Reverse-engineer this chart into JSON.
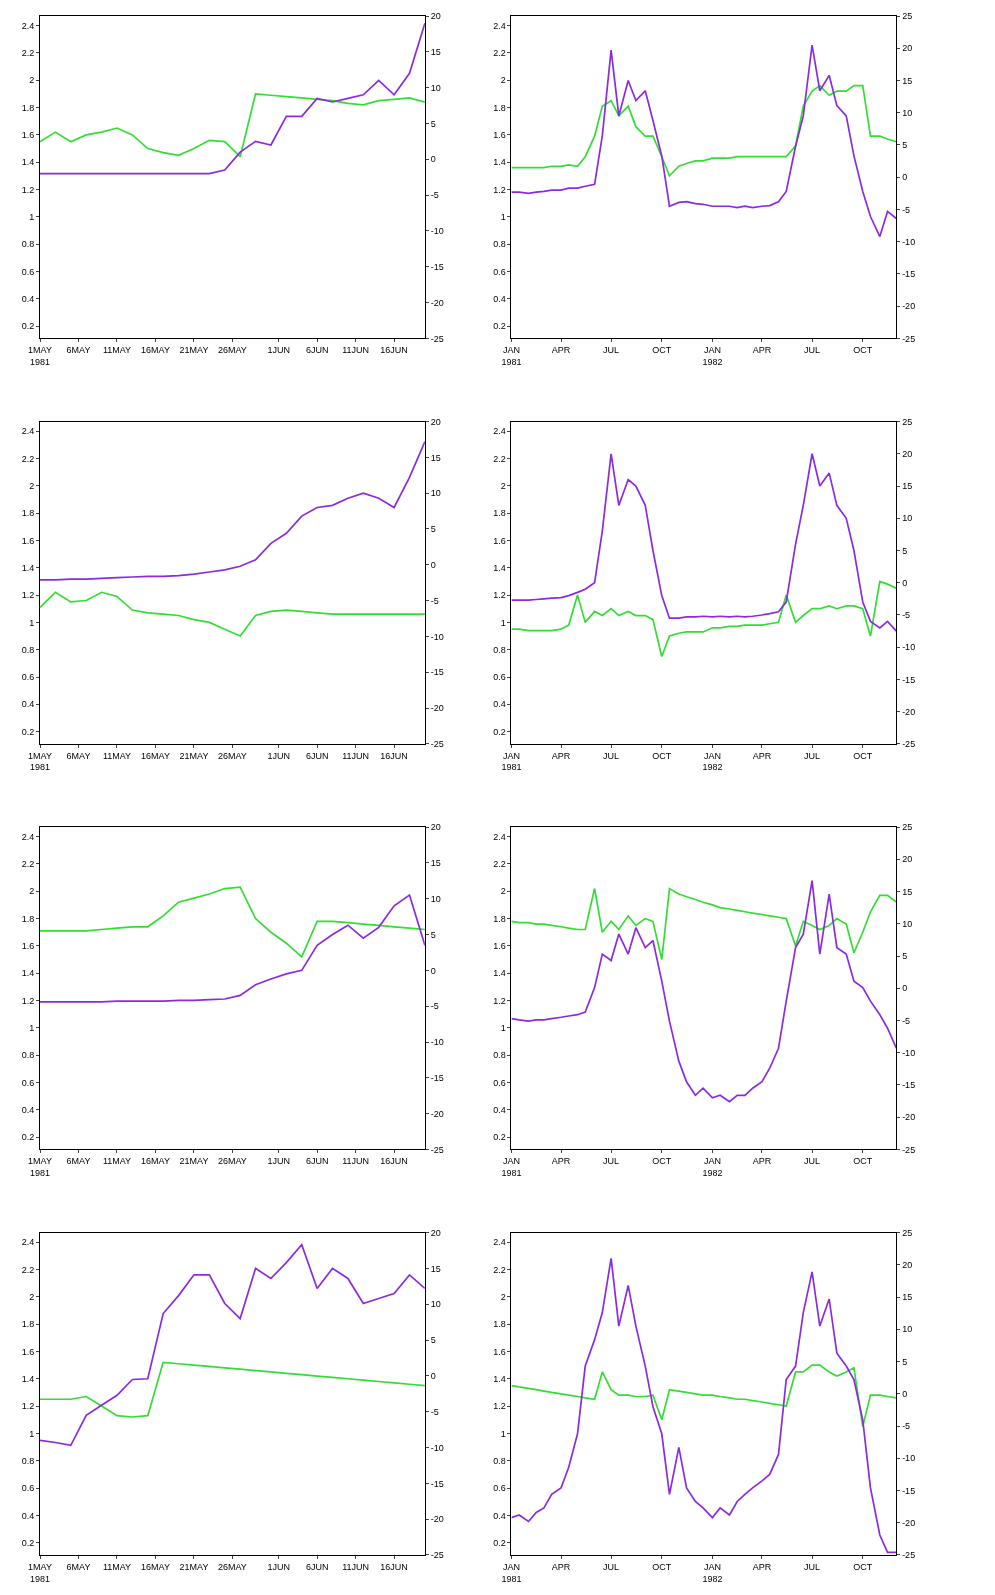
{
  "chart_data": [
    {
      "type": "line",
      "x": [
        "1981-05-01",
        "1981-05-03",
        "1981-05-05",
        "1981-05-07",
        "1981-05-09",
        "1981-05-11",
        "1981-05-13",
        "1981-05-15",
        "1981-05-17",
        "1981-05-19",
        "1981-05-21",
        "1981-05-23",
        "1981-05-25",
        "1981-05-27",
        "1981-05-29",
        "1981-05-31",
        "1981-06-02",
        "1981-06-04",
        "1981-06-06",
        "1981-06-08",
        "1981-06-10",
        "1981-06-12",
        "1981-06-14",
        "1981-06-16",
        "1981-06-18",
        "1981-06-20"
      ],
      "xlim": [
        "1981-05-01",
        "1981-06-20"
      ],
      "xticks": [
        {
          "value": "1981-05-01",
          "label": "1MAY\n1981"
        },
        {
          "value": "1981-05-06",
          "label": "6MAY"
        },
        {
          "value": "1981-05-11",
          "label": "11MAY"
        },
        {
          "value": "1981-05-16",
          "label": "16MAY"
        },
        {
          "value": "1981-05-21",
          "label": "21MAY"
        },
        {
          "value": "1981-05-26",
          "label": "26MAY"
        },
        {
          "value": "1981-06-01",
          "label": "1JUN"
        },
        {
          "value": "1981-06-06",
          "label": "6JUN"
        },
        {
          "value": "1981-06-11",
          "label": "11JUN"
        },
        {
          "value": "1981-06-16",
          "label": "16JUN"
        }
      ],
      "ylim": [
        0.11,
        2.47
      ],
      "yticks": [
        0.2,
        0.4,
        0.6,
        0.8,
        1,
        1.2,
        1.4,
        1.6,
        1.8,
        2,
        2.2,
        2.4
      ],
      "y2lim": [
        -25,
        20
      ],
      "y2ticks": [
        -25,
        -20,
        -15,
        -10,
        -5,
        0,
        5,
        10,
        15,
        20
      ],
      "series": [
        {
          "color": "#33dd33",
          "values": [
            1.55,
            1.62,
            1.55,
            1.6,
            1.62,
            1.65,
            1.6,
            1.5,
            1.47,
            1.45,
            1.5,
            1.56,
            1.55,
            1.44,
            1.9,
            1.89,
            1.88,
            1.87,
            1.86,
            1.85,
            1.83,
            1.82,
            1.85,
            1.86,
            1.87,
            1.84
          ]
        },
        {
          "color": "#8a2be2",
          "axis": "y2",
          "values": [
            -2,
            -2,
            -2,
            -2,
            -2,
            -2,
            -2,
            -2,
            -2,
            -2,
            -2,
            -2,
            -1.5,
            1,
            2.5,
            2,
            6,
            6,
            8.5,
            8,
            8.5,
            9,
            11,
            9,
            12,
            19
          ]
        }
      ]
    },
    {
      "type": "line",
      "x": [
        "1981-01-01",
        "1981-01-15",
        "1981-02-01",
        "1981-02-15",
        "1981-03-01",
        "1981-03-15",
        "1981-04-01",
        "1981-04-15",
        "1981-05-01",
        "1981-05-15",
        "1981-06-01",
        "1981-06-15",
        "1981-07-01",
        "1981-07-15",
        "1981-08-01",
        "1981-08-15",
        "1981-09-01",
        "1981-09-15",
        "1981-10-01",
        "1981-10-15",
        "1981-11-01",
        "1981-11-15",
        "1981-12-01",
        "1981-12-15",
        "1982-01-01",
        "1982-01-15",
        "1982-02-01",
        "1982-02-15",
        "1982-03-01",
        "1982-03-15",
        "1982-04-01",
        "1982-04-15",
        "1982-05-01",
        "1982-05-15",
        "1982-06-01",
        "1982-06-15",
        "1982-07-01",
        "1982-07-15",
        "1982-08-01",
        "1982-08-15",
        "1982-09-01",
        "1982-09-15",
        "1982-10-01",
        "1982-10-15",
        "1982-11-01",
        "1982-11-15",
        "1982-12-01"
      ],
      "xlim": [
        "1981-01-01",
        "1982-12-01"
      ],
      "xticks": [
        {
          "value": "1981-01-01",
          "label": "JAN\n1981"
        },
        {
          "value": "1981-04-01",
          "label": "APR"
        },
        {
          "value": "1981-07-01",
          "label": "JUL"
        },
        {
          "value": "1981-10-01",
          "label": "OCT"
        },
        {
          "value": "1982-01-01",
          "label": "JAN\n1982"
        },
        {
          "value": "1982-04-01",
          "label": "APR"
        },
        {
          "value": "1982-07-01",
          "label": "JUL"
        },
        {
          "value": "1982-10-01",
          "label": "OCT"
        }
      ],
      "ylim": [
        0.11,
        2.47
      ],
      "yticks": [
        0.2,
        0.4,
        0.6,
        0.8,
        1,
        1.2,
        1.4,
        1.6,
        1.8,
        2,
        2.2,
        2.4
      ],
      "y2lim": [
        -25,
        25
      ],
      "y2ticks": [
        -25,
        -20,
        -15,
        -10,
        -5,
        0,
        5,
        10,
        15,
        20,
        25
      ],
      "series": [
        {
          "color": "#33dd33",
          "values": [
            1.36,
            1.36,
            1.36,
            1.36,
            1.36,
            1.37,
            1.37,
            1.38,
            1.37,
            1.44,
            1.59,
            1.81,
            1.85,
            1.74,
            1.81,
            1.66,
            1.59,
            1.59,
            1.44,
            1.3,
            1.37,
            1.39,
            1.41,
            1.41,
            1.43,
            1.43,
            1.43,
            1.44,
            1.44,
            1.44,
            1.44,
            1.44,
            1.44,
            1.44,
            1.52,
            1.81,
            1.92,
            1.96,
            1.89,
            1.92,
            1.92,
            1.96,
            1.96,
            1.59,
            1.59,
            1.57,
            1.55
          ]
        },
        {
          "color": "#8a2be2",
          "axis": "y2",
          "values": [
            -2.3,
            -2.3,
            -2.5,
            -2.3,
            -2.2,
            -2.0,
            -2.0,
            -1.7,
            -1.7,
            -1.4,
            -1.1,
            6.4,
            19.7,
            9.5,
            15.0,
            11.9,
            13.4,
            8.8,
            3.3,
            -4.5,
            -3.9,
            -3.8,
            -4.1,
            -4.2,
            -4.5,
            -4.5,
            -4.5,
            -4.7,
            -4.5,
            -4.7,
            -4.5,
            -4.4,
            -3.8,
            -2.2,
            4.8,
            9.5,
            20.5,
            13.4,
            15.8,
            11.1,
            9.5,
            3.3,
            -2.2,
            -6.1,
            -9.2,
            -5.3,
            -6.4
          ]
        }
      ]
    },
    {
      "type": "line",
      "x": [
        "1981-05-01",
        "1981-05-03",
        "1981-05-05",
        "1981-05-07",
        "1981-05-09",
        "1981-05-11",
        "1981-05-13",
        "1981-05-15",
        "1981-05-17",
        "1981-05-19",
        "1981-05-21",
        "1981-05-23",
        "1981-05-25",
        "1981-05-27",
        "1981-05-29",
        "1981-05-31",
        "1981-06-02",
        "1981-06-04",
        "1981-06-06",
        "1981-06-08",
        "1981-06-10",
        "1981-06-12",
        "1981-06-14",
        "1981-06-16",
        "1981-06-18",
        "1981-06-20"
      ],
      "xlim": [
        "1981-05-01",
        "1981-06-20"
      ],
      "xticks": [
        {
          "value": "1981-05-01",
          "label": "1MAY\n1981"
        },
        {
          "value": "1981-05-06",
          "label": "6MAY"
        },
        {
          "value": "1981-05-11",
          "label": "11MAY"
        },
        {
          "value": "1981-05-16",
          "label": "16MAY"
        },
        {
          "value": "1981-05-21",
          "label": "21MAY"
        },
        {
          "value": "1981-05-26",
          "label": "26MAY"
        },
        {
          "value": "1981-06-01",
          "label": "1JUN"
        },
        {
          "value": "1981-06-06",
          "label": "6JUN"
        },
        {
          "value": "1981-06-11",
          "label": "11JUN"
        },
        {
          "value": "1981-06-16",
          "label": "16JUN"
        }
      ],
      "ylim": [
        0.11,
        2.47
      ],
      "yticks": [
        0.2,
        0.4,
        0.6,
        0.8,
        1,
        1.2,
        1.4,
        1.6,
        1.8,
        2,
        2.2,
        2.4
      ],
      "y2lim": [
        -25,
        20
      ],
      "y2ticks": [
        -25,
        -20,
        -15,
        -10,
        -5,
        0,
        5,
        10,
        15,
        20
      ],
      "series": [
        {
          "color": "#33dd33",
          "values": [
            1.11,
            1.22,
            1.15,
            1.16,
            1.22,
            1.19,
            1.09,
            1.07,
            1.06,
            1.05,
            1.02,
            1.0,
            0.95,
            0.9,
            1.05,
            1.08,
            1.09,
            1.08,
            1.07,
            1.06,
            1.06,
            1.06,
            1.06,
            1.06,
            1.06,
            1.06
          ]
        },
        {
          "color": "#8a2be2",
          "axis": "y2",
          "values": [
            -2.1,
            -2.1,
            -2.0,
            -2.0,
            -1.9,
            -1.8,
            -1.7,
            -1.6,
            -1.6,
            -1.5,
            -1.3,
            -1.0,
            -0.7,
            -0.2,
            0.7,
            3,
            4.4,
            6.8,
            8,
            8.3,
            9.3,
            10,
            9.3,
            8,
            12.2,
            17.2
          ]
        }
      ]
    },
    {
      "type": "line",
      "x": [
        "1981-01-01",
        "1981-01-15",
        "1981-02-01",
        "1981-02-15",
        "1981-03-01",
        "1981-03-15",
        "1981-04-01",
        "1981-04-15",
        "1981-05-01",
        "1981-05-15",
        "1981-06-01",
        "1981-06-15",
        "1981-07-01",
        "1981-07-15",
        "1981-08-01",
        "1981-08-15",
        "1981-09-01",
        "1981-09-15",
        "1981-10-01",
        "1981-10-15",
        "1981-11-01",
        "1981-11-15",
        "1981-12-01",
        "1981-12-15",
        "1982-01-01",
        "1982-01-15",
        "1982-02-01",
        "1982-02-15",
        "1982-03-01",
        "1982-03-15",
        "1982-04-01",
        "1982-04-15",
        "1982-05-01",
        "1982-05-15",
        "1982-06-01",
        "1982-06-15",
        "1982-07-01",
        "1982-07-15",
        "1982-08-01",
        "1982-08-15",
        "1982-09-01",
        "1982-09-15",
        "1982-10-01",
        "1982-10-15",
        "1982-11-01",
        "1982-11-15",
        "1982-12-01"
      ],
      "xlim": [
        "1981-01-01",
        "1982-12-01"
      ],
      "xticks": [
        {
          "value": "1981-01-01",
          "label": "JAN\n1981"
        },
        {
          "value": "1981-04-01",
          "label": "APR"
        },
        {
          "value": "1981-07-01",
          "label": "JUL"
        },
        {
          "value": "1981-10-01",
          "label": "OCT"
        },
        {
          "value": "1982-01-01",
          "label": "JAN\n1982"
        },
        {
          "value": "1982-04-01",
          "label": "APR"
        },
        {
          "value": "1982-07-01",
          "label": "JUL"
        },
        {
          "value": "1982-10-01",
          "label": "OCT"
        }
      ],
      "ylim": [
        0.11,
        2.47
      ],
      "yticks": [
        0.2,
        0.4,
        0.6,
        0.8,
        1,
        1.2,
        1.4,
        1.6,
        1.8,
        2,
        2.2,
        2.4
      ],
      "y2lim": [
        -25,
        25
      ],
      "y2ticks": [
        -25,
        -20,
        -15,
        -10,
        -5,
        0,
        5,
        10,
        15,
        20,
        25
      ],
      "series": [
        {
          "color": "#33dd33",
          "values": [
            0.95,
            0.95,
            0.94,
            0.94,
            0.94,
            0.94,
            0.95,
            0.98,
            1.2,
            1.0,
            1.08,
            1.05,
            1.1,
            1.05,
            1.08,
            1.05,
            1.05,
            1.02,
            0.75,
            0.9,
            0.92,
            0.93,
            0.93,
            0.93,
            0.96,
            0.96,
            0.97,
            0.97,
            0.98,
            0.98,
            0.98,
            0.99,
            1.0,
            1.2,
            1.0,
            1.05,
            1.1,
            1.1,
            1.12,
            1.1,
            1.12,
            1.12,
            1.1,
            0.9,
            1.3,
            1.28,
            1.25
          ]
        },
        {
          "color": "#8a2be2",
          "axis": "y2",
          "values": [
            -2.7,
            -2.7,
            -2.7,
            -2.6,
            -2.5,
            -2.4,
            -2.3,
            -2.0,
            -1.5,
            -1.0,
            0,
            8,
            20,
            12,
            16,
            15,
            12,
            5,
            -2,
            -5.5,
            -5.5,
            -5.3,
            -5.3,
            -5.2,
            -5.3,
            -5.2,
            -5.3,
            -5.2,
            -5.3,
            -5.2,
            -5.0,
            -4.8,
            -4.5,
            -3,
            6,
            12,
            20,
            15,
            17,
            12,
            10,
            5,
            -3,
            -6,
            -7,
            -6,
            -7.5
          ]
        }
      ]
    },
    {
      "type": "line",
      "x": [
        "1981-05-01",
        "1981-05-03",
        "1981-05-05",
        "1981-05-07",
        "1981-05-09",
        "1981-05-11",
        "1981-05-13",
        "1981-05-15",
        "1981-05-17",
        "1981-05-19",
        "1981-05-21",
        "1981-05-23",
        "1981-05-25",
        "1981-05-27",
        "1981-05-29",
        "1981-05-31",
        "1981-06-02",
        "1981-06-04",
        "1981-06-06",
        "1981-06-08",
        "1981-06-10",
        "1981-06-12",
        "1981-06-14",
        "1981-06-16",
        "1981-06-18",
        "1981-06-20"
      ],
      "xlim": [
        "1981-05-01",
        "1981-06-20"
      ],
      "xticks": [
        {
          "value": "1981-05-01",
          "label": "1MAY\n1981"
        },
        {
          "value": "1981-05-06",
          "label": "6MAY"
        },
        {
          "value": "1981-05-11",
          "label": "11MAY"
        },
        {
          "value": "1981-05-16",
          "label": "16MAY"
        },
        {
          "value": "1981-05-21",
          "label": "21MAY"
        },
        {
          "value": "1981-05-26",
          "label": "26MAY"
        },
        {
          "value": "1981-06-01",
          "label": "1JUN"
        },
        {
          "value": "1981-06-06",
          "label": "6JUN"
        },
        {
          "value": "1981-06-11",
          "label": "11JUN"
        },
        {
          "value": "1981-06-16",
          "label": "16JUN"
        }
      ],
      "ylim": [
        0.11,
        2.47
      ],
      "yticks": [
        0.2,
        0.4,
        0.6,
        0.8,
        1,
        1.2,
        1.4,
        1.6,
        1.8,
        2,
        2.2,
        2.4
      ],
      "y2lim": [
        -25,
        20
      ],
      "y2ticks": [
        -25,
        -20,
        -15,
        -10,
        -5,
        0,
        5,
        10,
        15,
        20
      ],
      "series": [
        {
          "color": "#33dd33",
          "values": [
            1.71,
            1.71,
            1.71,
            1.71,
            1.72,
            1.73,
            1.74,
            1.74,
            1.82,
            1.92,
            1.95,
            1.98,
            2.02,
            2.03,
            1.8,
            1.7,
            1.62,
            1.52,
            1.78,
            1.78,
            1.77,
            1.76,
            1.75,
            1.74,
            1.73,
            1.72
          ]
        },
        {
          "color": "#8a2be2",
          "axis": "y2",
          "values": [
            -4.4,
            -4.4,
            -4.4,
            -4.4,
            -4.4,
            -4.3,
            -4.3,
            -4.3,
            -4.3,
            -4.2,
            -4.2,
            -4.1,
            -4.0,
            -3.5,
            -2,
            -1.2,
            -0.5,
            0,
            3.5,
            5,
            6.3,
            4.5,
            6,
            9,
            10.5,
            3.5
          ]
        }
      ]
    },
    {
      "type": "line",
      "x": [
        "1981-01-01",
        "1981-01-15",
        "1981-02-01",
        "1981-02-15",
        "1981-03-01",
        "1981-03-15",
        "1981-04-01",
        "1981-04-15",
        "1981-05-01",
        "1981-05-15",
        "1981-06-01",
        "1981-06-15",
        "1981-07-01",
        "1981-07-15",
        "1981-08-01",
        "1981-08-15",
        "1981-09-01",
        "1981-09-15",
        "1981-10-01",
        "1981-10-15",
        "1981-11-01",
        "1981-11-15",
        "1981-12-01",
        "1981-12-15",
        "1982-01-01",
        "1982-01-15",
        "1982-02-01",
        "1982-02-15",
        "1982-03-01",
        "1982-03-15",
        "1982-04-01",
        "1982-04-15",
        "1982-05-01",
        "1982-05-15",
        "1982-06-01",
        "1982-06-15",
        "1982-07-01",
        "1982-07-15",
        "1982-08-01",
        "1982-08-15",
        "1982-09-01",
        "1982-09-15",
        "1982-10-01",
        "1982-10-15",
        "1982-11-01",
        "1982-11-15",
        "1982-12-01"
      ],
      "xlim": [
        "1981-01-01",
        "1982-12-01"
      ],
      "xticks": [
        {
          "value": "1981-01-01",
          "label": "JAN\n1981"
        },
        {
          "value": "1981-04-01",
          "label": "APR"
        },
        {
          "value": "1981-07-01",
          "label": "JUL"
        },
        {
          "value": "1981-10-01",
          "label": "OCT"
        },
        {
          "value": "1982-01-01",
          "label": "JAN\n1982"
        },
        {
          "value": "1982-04-01",
          "label": "APR"
        },
        {
          "value": "1982-07-01",
          "label": "JUL"
        },
        {
          "value": "1982-10-01",
          "label": "OCT"
        }
      ],
      "ylim": [
        0.11,
        2.47
      ],
      "yticks": [
        0.2,
        0.4,
        0.6,
        0.8,
        1,
        1.2,
        1.4,
        1.6,
        1.8,
        2,
        2.2,
        2.4
      ],
      "y2lim": [
        -25,
        25
      ],
      "y2ticks": [
        -25,
        -20,
        -15,
        -10,
        -5,
        0,
        5,
        10,
        15,
        20,
        25
      ],
      "series": [
        {
          "color": "#33dd33",
          "values": [
            1.78,
            1.77,
            1.77,
            1.76,
            1.76,
            1.75,
            1.74,
            1.73,
            1.72,
            1.72,
            2.02,
            1.7,
            1.78,
            1.72,
            1.82,
            1.75,
            1.8,
            1.78,
            1.5,
            2.02,
            1.98,
            1.96,
            1.94,
            1.92,
            1.9,
            1.88,
            1.87,
            1.86,
            1.85,
            1.84,
            1.83,
            1.82,
            1.81,
            1.8,
            1.6,
            1.78,
            1.75,
            1.72,
            1.75,
            1.8,
            1.76,
            1.55,
            1.7,
            1.85,
            1.97,
            1.97,
            1.92
          ]
        },
        {
          "color": "#8a2be2",
          "axis": "y2",
          "values": [
            -4.7,
            -4.9,
            -5.1,
            -4.9,
            -4.9,
            -4.7,
            -4.5,
            -4.3,
            -4.1,
            -3.7,
            0.1,
            5.3,
            4.3,
            8.4,
            5.3,
            9.4,
            6.3,
            7.4,
            1.1,
            -5.1,
            -11.3,
            -14.5,
            -16.6,
            -15.5,
            -17.0,
            -16.6,
            -17.6,
            -16.6,
            -16.6,
            -15.5,
            -14.5,
            -12.4,
            -9.3,
            -2.0,
            6.3,
            8.4,
            16.7,
            5.3,
            14.6,
            6.3,
            5.3,
            1.1,
            0.1,
            -2.0,
            -4.1,
            -6.2,
            -9.3
          ]
        }
      ]
    },
    {
      "type": "line",
      "x": [
        "1981-05-01",
        "1981-05-03",
        "1981-05-05",
        "1981-05-07",
        "1981-05-09",
        "1981-05-11",
        "1981-05-13",
        "1981-05-15",
        "1981-05-17",
        "1981-05-19",
        "1981-05-21",
        "1981-05-23",
        "1981-05-25",
        "1981-05-27",
        "1981-05-29",
        "1981-05-31",
        "1981-06-02",
        "1981-06-04",
        "1981-06-06",
        "1981-06-08",
        "1981-06-10",
        "1981-06-12",
        "1981-06-14",
        "1981-06-16",
        "1981-06-18",
        "1981-06-20"
      ],
      "xlim": [
        "1981-05-01",
        "1981-06-20"
      ],
      "xticks": [
        {
          "value": "1981-05-01",
          "label": "1MAY\n1981"
        },
        {
          "value": "1981-05-06",
          "label": "6MAY"
        },
        {
          "value": "1981-05-11",
          "label": "11MAY"
        },
        {
          "value": "1981-05-16",
          "label": "16MAY"
        },
        {
          "value": "1981-05-21",
          "label": "21MAY"
        },
        {
          "value": "1981-05-26",
          "label": "26MAY"
        },
        {
          "value": "1981-06-01",
          "label": "1JUN"
        },
        {
          "value": "1981-06-06",
          "label": "6JUN"
        },
        {
          "value": "1981-06-11",
          "label": "11JUN"
        },
        {
          "value": "1981-06-16",
          "label": "16JUN"
        }
      ],
      "ylim": [
        0.11,
        2.47
      ],
      "yticks": [
        0.2,
        0.4,
        0.6,
        0.8,
        1,
        1.2,
        1.4,
        1.6,
        1.8,
        2,
        2.2,
        2.4
      ],
      "y2lim": [
        -25,
        20
      ],
      "y2ticks": [
        -25,
        -20,
        -15,
        -10,
        -5,
        0,
        5,
        10,
        15,
        20
      ],
      "series": [
        {
          "color": "#33dd33",
          "values": [
            1.25,
            1.25,
            1.25,
            1.27,
            1.2,
            1.13,
            1.12,
            1.13,
            1.52,
            1.51,
            1.5,
            1.49,
            1.48,
            1.47,
            1.46,
            1.45,
            1.44,
            1.43,
            1.42,
            1.41,
            1.4,
            1.39,
            1.38,
            1.37,
            1.36,
            1.35
          ]
        },
        {
          "color": "#8a2be2",
          "axis": "y2",
          "values": [
            -9.0,
            -9.3,
            -9.7,
            -5.5,
            -4.1,
            -2.7,
            -0.5,
            -0.4,
            8.7,
            11.2,
            14.1,
            14.1,
            10.1,
            8.0,
            15.0,
            13.6,
            15.8,
            18.3,
            12.2,
            15.0,
            13.6,
            10.1,
            10.8,
            11.5,
            14.1,
            12.2
          ]
        }
      ]
    },
    {
      "type": "line",
      "x": [
        "1981-01-01",
        "1981-01-15",
        "1981-02-01",
        "1981-02-15",
        "1981-03-01",
        "1981-03-15",
        "1981-04-01",
        "1981-04-15",
        "1981-05-01",
        "1981-05-15",
        "1981-06-01",
        "1981-06-15",
        "1981-07-01",
        "1981-07-15",
        "1981-08-01",
        "1981-08-15",
        "1981-09-01",
        "1981-09-15",
        "1981-10-01",
        "1981-10-15",
        "1981-11-01",
        "1981-11-15",
        "1981-12-01",
        "1981-12-15",
        "1982-01-01",
        "1982-01-15",
        "1982-02-01",
        "1982-02-15",
        "1982-03-01",
        "1982-03-15",
        "1982-04-01",
        "1982-04-15",
        "1982-05-01",
        "1982-05-15",
        "1982-06-01",
        "1982-06-15",
        "1982-07-01",
        "1982-07-15",
        "1982-08-01",
        "1982-08-15",
        "1982-09-01",
        "1982-09-15",
        "1982-10-01",
        "1982-10-15",
        "1982-11-01",
        "1982-11-15",
        "1982-12-01"
      ],
      "xlim": [
        "1981-01-01",
        "1982-12-01"
      ],
      "xticks": [
        {
          "value": "1981-01-01",
          "label": "JAN\n1981"
        },
        {
          "value": "1981-04-01",
          "label": "APR"
        },
        {
          "value": "1981-07-01",
          "label": "JUL"
        },
        {
          "value": "1981-10-01",
          "label": "OCT"
        },
        {
          "value": "1982-01-01",
          "label": "JAN\n1982"
        },
        {
          "value": "1982-04-01",
          "label": "APR"
        },
        {
          "value": "1982-07-01",
          "label": "JUL"
        },
        {
          "value": "1982-10-01",
          "label": "OCT"
        }
      ],
      "ylim": [
        0.11,
        2.47
      ],
      "yticks": [
        0.2,
        0.4,
        0.6,
        0.8,
        1,
        1.2,
        1.4,
        1.6,
        1.8,
        2,
        2.2,
        2.4
      ],
      "y2lim": [
        -25,
        25
      ],
      "y2ticks": [
        -25,
        -20,
        -15,
        -10,
        -5,
        0,
        5,
        10,
        15,
        20,
        25
      ],
      "series": [
        {
          "color": "#33dd33",
          "values": [
            1.35,
            1.34,
            1.33,
            1.32,
            1.31,
            1.3,
            1.29,
            1.28,
            1.27,
            1.26,
            1.25,
            1.45,
            1.32,
            1.28,
            1.28,
            1.27,
            1.27,
            1.28,
            1.1,
            1.32,
            1.31,
            1.3,
            1.29,
            1.28,
            1.28,
            1.27,
            1.26,
            1.25,
            1.25,
            1.24,
            1.23,
            1.22,
            1.21,
            1.2,
            1.45,
            1.45,
            1.5,
            1.5,
            1.45,
            1.42,
            1.45,
            1.48,
            1.05,
            1.28,
            1.28,
            1.27,
            1.26
          ]
        },
        {
          "color": "#8a2be2",
          "axis": "y2",
          "values": [
            -19.2,
            -18.8,
            -19.8,
            -18.4,
            -17.7,
            -15.6,
            -14.6,
            -11.4,
            -6.2,
            4.3,
            8.4,
            12.6,
            21.0,
            10.5,
            16.8,
            10.5,
            4.3,
            -2.0,
            -6.2,
            -15.6,
            -8.3,
            -14.6,
            -16.7,
            -17.7,
            -19.2,
            -17.7,
            -18.8,
            -16.7,
            -15.6,
            -14.6,
            -13.5,
            -12.5,
            -9.4,
            2.2,
            4.3,
            12.6,
            18.9,
            10.5,
            14.7,
            6.3,
            4.3,
            2.2,
            -4.1,
            -14.6,
            -21.9,
            -24.6,
            -24.6
          ]
        }
      ]
    }
  ]
}
